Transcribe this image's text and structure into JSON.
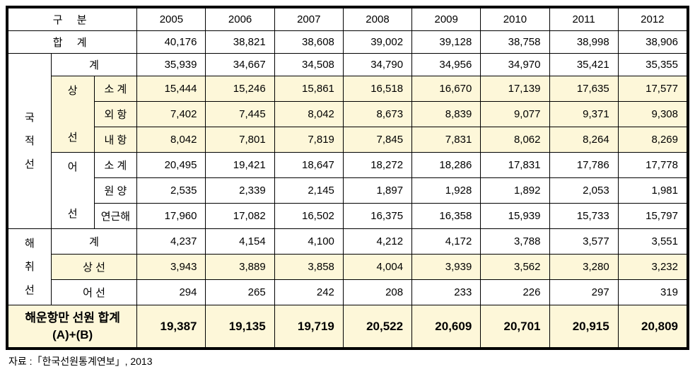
{
  "headers": {
    "category": "구     분",
    "years": [
      "2005",
      "2006",
      "2007",
      "2008",
      "2009",
      "2010",
      "2011",
      "2012"
    ]
  },
  "rows": {
    "total": {
      "label": "합       계",
      "values": [
        "40,176",
        "38,821",
        "38,608",
        "39,002",
        "39,128",
        "38,758",
        "38,998",
        "38,906"
      ]
    },
    "domestic": {
      "group_label": "국\n적\n선",
      "subtotal": {
        "label": "계",
        "values": [
          "35,939",
          "34,667",
          "34,508",
          "34,790",
          "34,956",
          "34,970",
          "35,421",
          "35,355"
        ]
      },
      "merchant": {
        "group_label": "상\n\n선",
        "subtotal": {
          "label": "소  계",
          "values": [
            "15,444",
            "15,246",
            "15,861",
            "16,518",
            "16,670",
            "17,139",
            "17,635",
            "17,577"
          ]
        },
        "foreign": {
          "label": "외  항",
          "values": [
            "7,402",
            "7,445",
            "8,042",
            "8,673",
            "8,839",
            "9,077",
            "9,371",
            "9,308"
          ]
        },
        "coastal": {
          "label": "내  항",
          "values": [
            "8,042",
            "7,801",
            "7,819",
            "7,845",
            "7,831",
            "8,062",
            "8,264",
            "8,269"
          ]
        }
      },
      "fishing": {
        "group_label": "어\n\n선",
        "subtotal": {
          "label": "소  계",
          "values": [
            "20,495",
            "19,421",
            "18,647",
            "18,272",
            "18,286",
            "17,831",
            "17,786",
            "17,778"
          ]
        },
        "ocean": {
          "label": "원  양",
          "values": [
            "2,535",
            "2,339",
            "2,145",
            "1,897",
            "1,928",
            "1,892",
            "2,053",
            "1,981"
          ]
        },
        "nearshore": {
          "label": "연근해",
          "values": [
            "17,960",
            "17,082",
            "16,502",
            "16,375",
            "16,358",
            "15,939",
            "15,733",
            "15,797"
          ]
        }
      }
    },
    "foreign_vessel": {
      "group_label": "해\n취\n선",
      "subtotal": {
        "label": "계",
        "values": [
          "4,237",
          "4,154",
          "4,100",
          "4,212",
          "4,172",
          "3,788",
          "3,577",
          "3,551"
        ]
      },
      "merchant": {
        "label": "상   선",
        "values": [
          "3,943",
          "3,889",
          "3,858",
          "4,004",
          "3,939",
          "3,562",
          "3,280",
          "3,232"
        ]
      },
      "fishing": {
        "label": "어   선",
        "values": [
          "294",
          "265",
          "242",
          "208",
          "233",
          "226",
          "297",
          "319"
        ]
      }
    },
    "footer": {
      "label_line1": "해운항만 선원 합계",
      "label_line2": "(A)+(B)",
      "values": [
        "19,387",
        "19,135",
        "19,719",
        "20,522",
        "20,609",
        "20,701",
        "20,915",
        "20,809"
      ]
    }
  },
  "source": "자료 :「한국선원통계연보」, 2013",
  "colors": {
    "highlight": "#fdf7d9",
    "border": "#000000",
    "background": "#ffffff"
  }
}
